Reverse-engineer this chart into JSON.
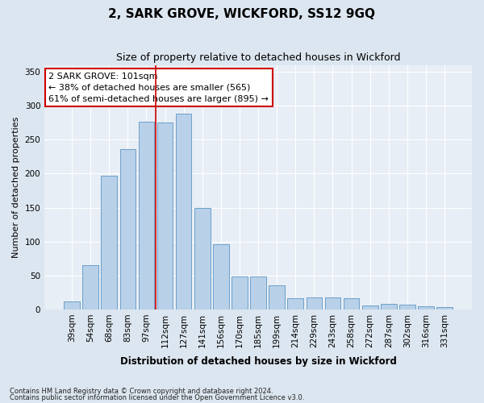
{
  "title": "2, SARK GROVE, WICKFORD, SS12 9GQ",
  "subtitle": "Size of property relative to detached houses in Wickford",
  "xlabel": "Distribution of detached houses by size in Wickford",
  "ylabel": "Number of detached properties",
  "categories": [
    "39sqm",
    "54sqm",
    "68sqm",
    "83sqm",
    "97sqm",
    "112sqm",
    "127sqm",
    "141sqm",
    "156sqm",
    "170sqm",
    "185sqm",
    "199sqm",
    "214sqm",
    "229sqm",
    "243sqm",
    "258sqm",
    "272sqm",
    "287sqm",
    "302sqm",
    "316sqm",
    "331sqm"
  ],
  "values": [
    12,
    65,
    197,
    236,
    276,
    275,
    288,
    149,
    96,
    48,
    48,
    35,
    17,
    18,
    18,
    17,
    6,
    8,
    7,
    5,
    3
  ],
  "bar_color": "#b8d0e8",
  "bar_edge_color": "#6aa0cb",
  "vline_x": 4.5,
  "vline_color": "#cc0000",
  "annotation_text": "2 SARK GROVE: 101sqm\n← 38% of detached houses are smaller (565)\n61% of semi-detached houses are larger (895) →",
  "annotation_box_color": "white",
  "annotation_box_edge_color": "#cc0000",
  "ylim": [
    0,
    360
  ],
  "yticks": [
    0,
    50,
    100,
    150,
    200,
    250,
    300,
    350
  ],
  "footer1": "Contains HM Land Registry data © Crown copyright and database right 2024.",
  "footer2": "Contains public sector information licensed under the Open Government Licence v3.0.",
  "bg_color": "#dce6f0",
  "plot_bg_color": "#e8eef5",
  "title_fontsize": 11,
  "subtitle_fontsize": 9,
  "tick_fontsize": 7.5,
  "ylabel_fontsize": 8
}
